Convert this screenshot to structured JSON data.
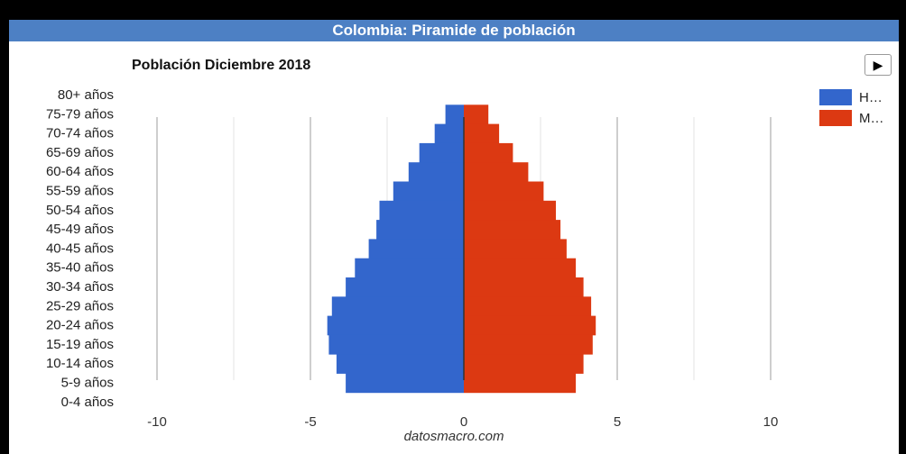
{
  "header": {
    "title": "Colombia: Piramide de población"
  },
  "chart_header": {
    "subtitle": "Población Diciembre 2018",
    "play_label": "▶"
  },
  "footer": {
    "credit": "datosmacro.com"
  },
  "chart_data": {
    "type": "bar",
    "orientation": "horizontal-pyramid",
    "title": "Colombia: Piramide de población",
    "subtitle": "Población Diciembre 2018",
    "categories": [
      "80+ años",
      "75-79 años",
      "70-74 años",
      "65-69 años",
      "60-64 años",
      "55-59 años",
      "50-54 años",
      "45-49 años",
      "40-45 años",
      "35-40 años",
      "30-34 años",
      "25-29 años",
      "20-24 años",
      "15-19 años",
      "10-14 años",
      "5-9 años",
      "0-4 años"
    ],
    "x_ticks": [
      -10,
      -5,
      0,
      5,
      10
    ],
    "xlim": [
      -10,
      10
    ],
    "grid": true,
    "legend_position": "top-right",
    "series": [
      {
        "name": "H…",
        "color": "#3366cc",
        "values": [
          0,
          -0.6,
          -0.95,
          -1.45,
          -1.8,
          -2.3,
          -2.75,
          -2.85,
          -3.1,
          -3.55,
          -3.85,
          -4.3,
          -4.45,
          -4.4,
          -4.15,
          -3.85,
          0
        ]
      },
      {
        "name": "M…",
        "color": "#dc3912",
        "values": [
          0,
          0.8,
          1.15,
          1.6,
          2.1,
          2.6,
          3.0,
          3.15,
          3.35,
          3.65,
          3.9,
          4.15,
          4.3,
          4.2,
          3.9,
          3.65,
          0
        ]
      }
    ]
  }
}
